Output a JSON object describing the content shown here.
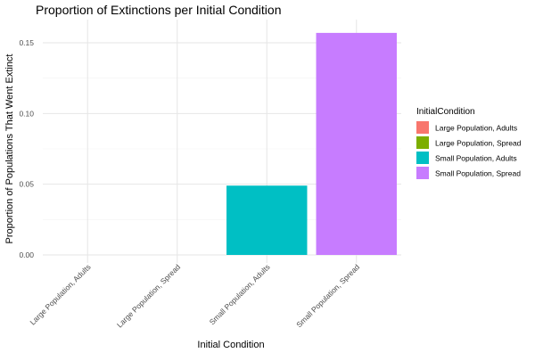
{
  "chart_data": {
    "type": "bar",
    "title": "Proportion of Extinctions per Initial Condition",
    "xlabel": "Initial Condition",
    "ylabel": "Proportion of Populations That Went Extinct",
    "categories": [
      "Large Population, Adults",
      "Large Population, Spread",
      "Small Population, Adults",
      "Small Population, Spread"
    ],
    "values": [
      0.0,
      0.0,
      0.049,
      0.157
    ],
    "colors": [
      "#F8766D",
      "#7CAE00",
      "#00BFC4",
      "#C77CFF"
    ],
    "ylim": [
      0,
      0.16
    ],
    "yticks": [
      0.0,
      0.05,
      0.1,
      0.15
    ],
    "ytick_labels": [
      "0.00",
      "0.05",
      "0.10",
      "0.15"
    ],
    "grid": true,
    "legend": {
      "title": "InitialCondition",
      "placement": "right",
      "entries": [
        "Large Population, Adults",
        "Large Population, Spread",
        "Small Population, Adults",
        "Small Population, Spread"
      ]
    }
  }
}
